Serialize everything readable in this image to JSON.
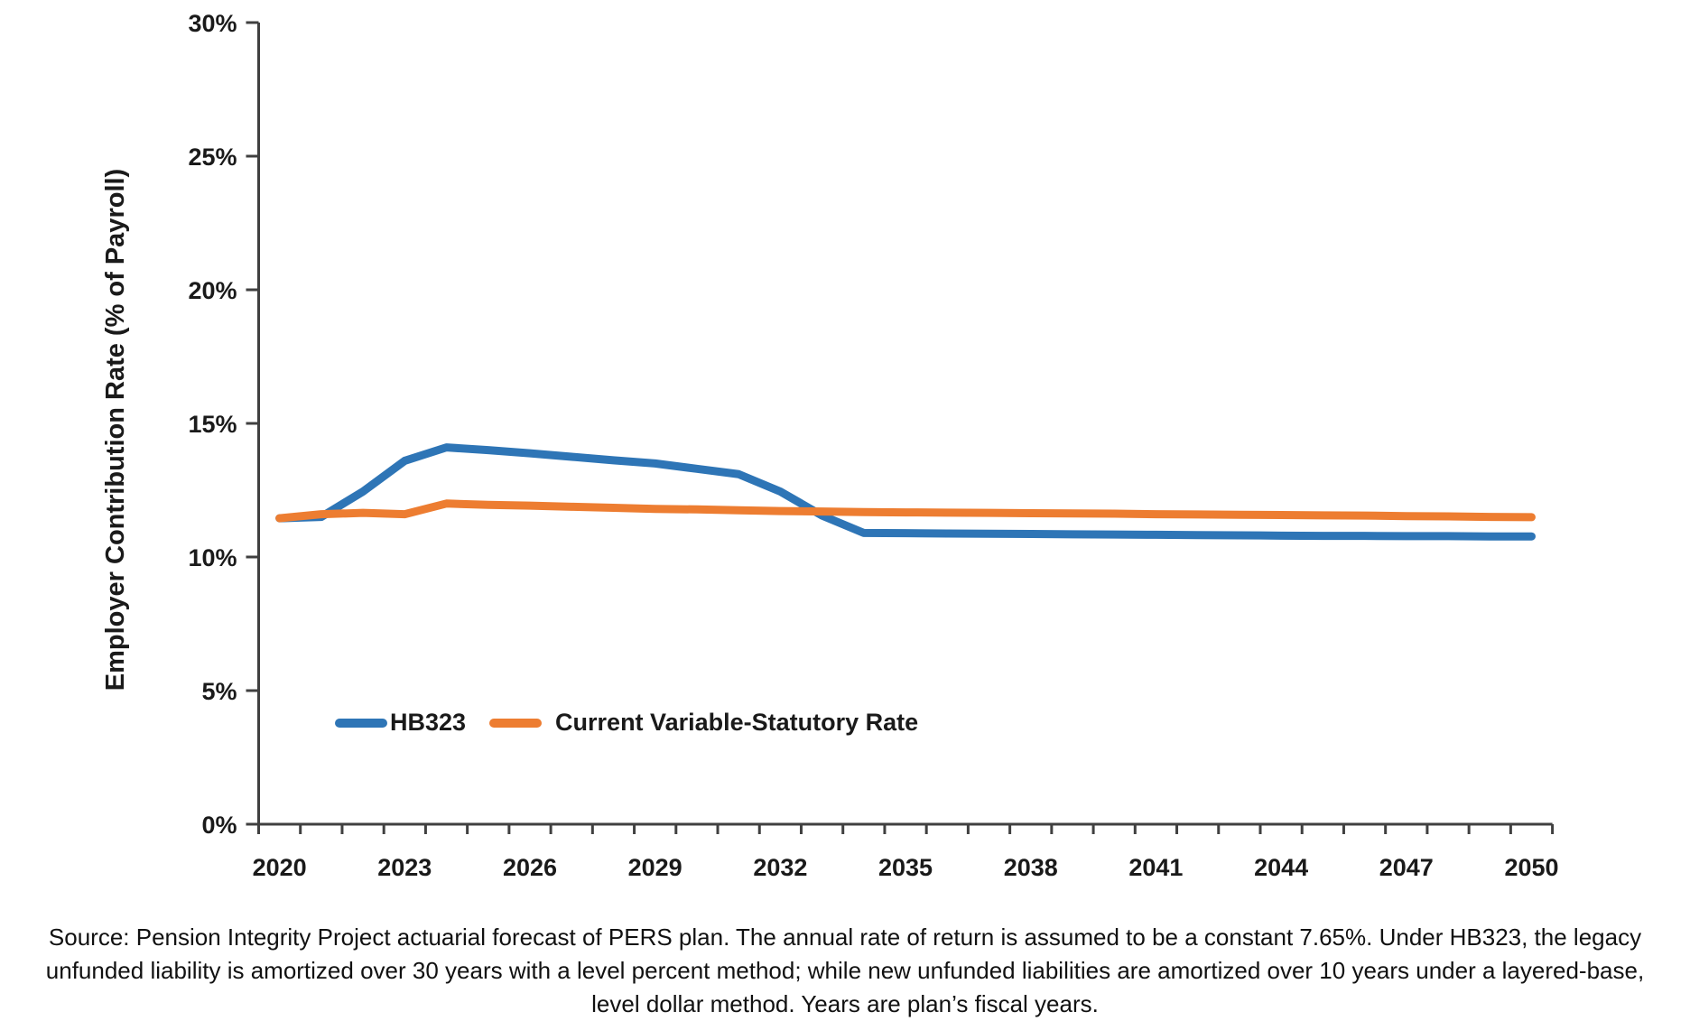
{
  "chart_data": {
    "type": "line",
    "title": "",
    "xlabel": "",
    "ylabel": "Employer Contribution Rate (% of Payroll)",
    "ylim": [
      0,
      30
    ],
    "grid": false,
    "legend_position": "inside-bottom-left",
    "x": [
      2020,
      2021,
      2022,
      2023,
      2024,
      2025,
      2026,
      2027,
      2028,
      2029,
      2030,
      2031,
      2032,
      2033,
      2034,
      2035,
      2036,
      2037,
      2038,
      2039,
      2040,
      2041,
      2042,
      2043,
      2044,
      2045,
      2046,
      2047,
      2048,
      2049,
      2050
    ],
    "series": [
      {
        "name": "HB323",
        "color": "#2E75B6",
        "values": [
          11.45,
          11.5,
          12.45,
          13.6,
          14.1,
          14.0,
          13.88,
          13.75,
          13.62,
          13.5,
          13.3,
          13.1,
          12.45,
          11.55,
          10.9,
          10.89,
          10.88,
          10.87,
          10.86,
          10.85,
          10.84,
          10.83,
          10.82,
          10.81,
          10.8,
          10.79,
          10.79,
          10.78,
          10.78,
          10.77,
          10.77
        ]
      },
      {
        "name": "Current Variable-Statutory Rate",
        "color": "#ED7D31",
        "values": [
          11.45,
          11.6,
          11.65,
          11.6,
          12.0,
          11.95,
          11.92,
          11.88,
          11.84,
          11.8,
          11.78,
          11.75,
          11.72,
          11.7,
          11.68,
          11.67,
          11.66,
          11.65,
          11.64,
          11.63,
          11.62,
          11.6,
          11.59,
          11.58,
          11.57,
          11.56,
          11.55,
          11.53,
          11.52,
          11.5,
          11.49
        ]
      }
    ],
    "ytick_values": [
      0,
      5,
      10,
      15,
      20,
      25,
      30
    ],
    "ytick_labels": [
      "0%",
      "5%",
      "10%",
      "15%",
      "20%",
      "25%",
      "30%"
    ],
    "xtick_values": [
      2020,
      2023,
      2026,
      2029,
      2032,
      2035,
      2038,
      2041,
      2044,
      2047,
      2050
    ],
    "xtick_labels": [
      "2020",
      "2023",
      "2026",
      "2029",
      "2032",
      "2035",
      "2038",
      "2041",
      "2044",
      "2047",
      "2050"
    ]
  },
  "source_note": {
    "lines": [
      "Source: Pension Integrity Project actuarial forecast of PERS plan. The annual rate of return is assumed to be a constant 7.65%. Under HB323, the legacy",
      "unfunded liability is amortized over 30 years with a level percent method; while new unfunded liabilities are amortized over 10 years under a layered-base,",
      "level dollar method. Years are plan’s fiscal years."
    ]
  }
}
